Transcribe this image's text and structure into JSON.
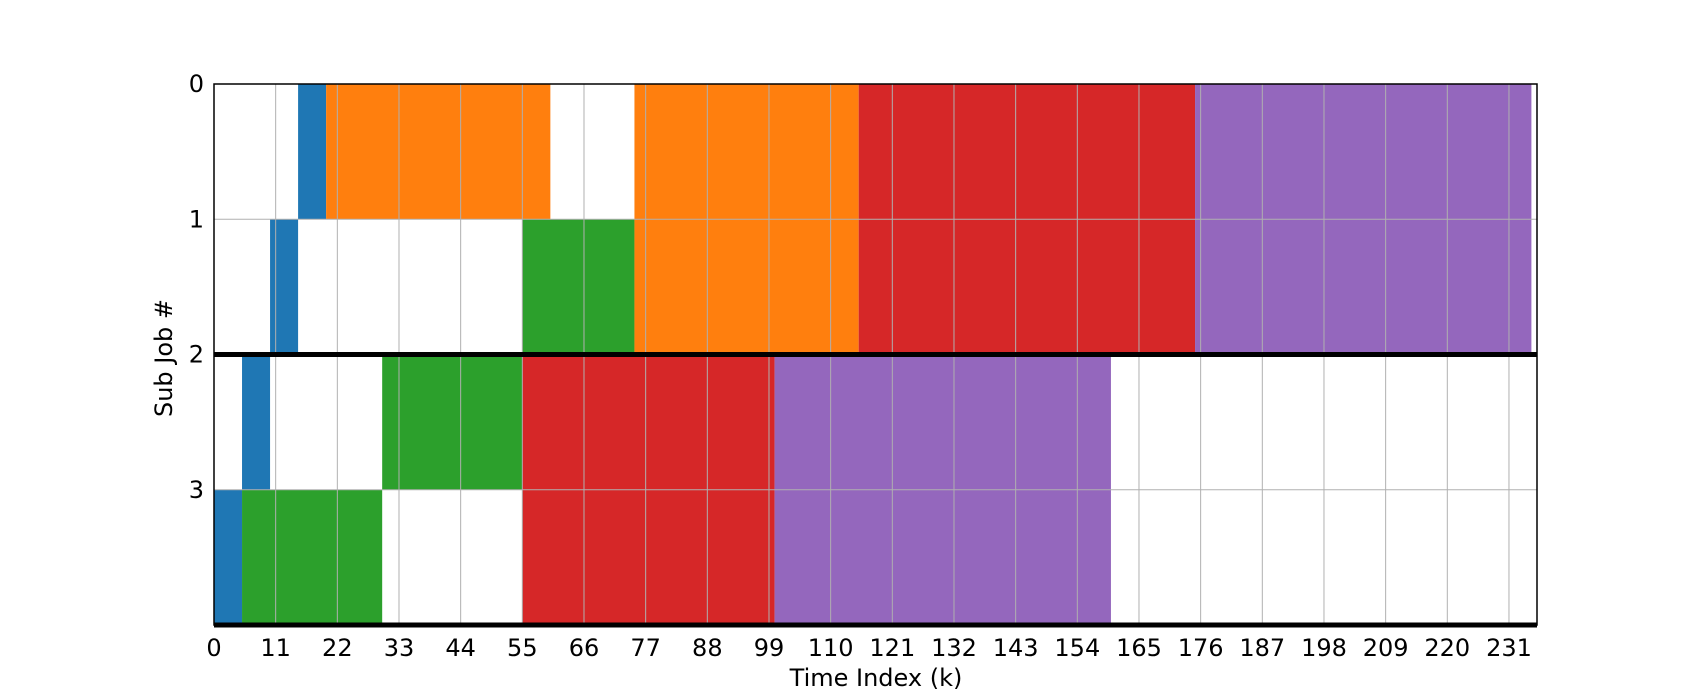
{
  "chart_data": {
    "type": "gantt",
    "xlabel": "Time Index (k)",
    "ylabel": "Sub Job #",
    "xlim": [
      0,
      236
    ],
    "ylim": [
      0,
      4
    ],
    "grid": true,
    "x_ticks": [
      0,
      11,
      22,
      33,
      44,
      55,
      66,
      77,
      88,
      99,
      110,
      121,
      132,
      143,
      154,
      165,
      176,
      187,
      198,
      209,
      220,
      231
    ],
    "y_ticks": [
      0,
      1,
      2,
      3
    ],
    "y_inverted": true,
    "colors": {
      "blue": "#1f77b4",
      "orange": "#ff7f0e",
      "green": "#2ca02c",
      "red": "#d62728",
      "purple": "#9467bd"
    },
    "separators_y": [
      2,
      4
    ],
    "bars": [
      {
        "row": 0,
        "start": 15,
        "end": 20,
        "color": "blue"
      },
      {
        "row": 0,
        "start": 20,
        "end": 60,
        "color": "orange"
      },
      {
        "row": 0,
        "start": 75,
        "end": 115,
        "color": "orange"
      },
      {
        "row": 0,
        "start": 115,
        "end": 175,
        "color": "red"
      },
      {
        "row": 0,
        "start": 175,
        "end": 235,
        "color": "purple"
      },
      {
        "row": 1,
        "start": 10,
        "end": 15,
        "color": "blue"
      },
      {
        "row": 1,
        "start": 55,
        "end": 75,
        "color": "green"
      },
      {
        "row": 1,
        "start": 75,
        "end": 115,
        "color": "orange"
      },
      {
        "row": 1,
        "start": 115,
        "end": 175,
        "color": "red"
      },
      {
        "row": 1,
        "start": 175,
        "end": 235,
        "color": "purple"
      },
      {
        "row": 2,
        "start": 5,
        "end": 10,
        "color": "blue"
      },
      {
        "row": 2,
        "start": 30,
        "end": 55,
        "color": "green"
      },
      {
        "row": 2,
        "start": 55,
        "end": 100,
        "color": "red"
      },
      {
        "row": 2,
        "start": 100,
        "end": 160,
        "color": "purple"
      },
      {
        "row": 3,
        "start": 0,
        "end": 5,
        "color": "blue"
      },
      {
        "row": 3,
        "start": 5,
        "end": 30,
        "color": "green"
      },
      {
        "row": 3,
        "start": 55,
        "end": 100,
        "color": "red"
      },
      {
        "row": 3,
        "start": 100,
        "end": 160,
        "color": "purple"
      }
    ]
  }
}
